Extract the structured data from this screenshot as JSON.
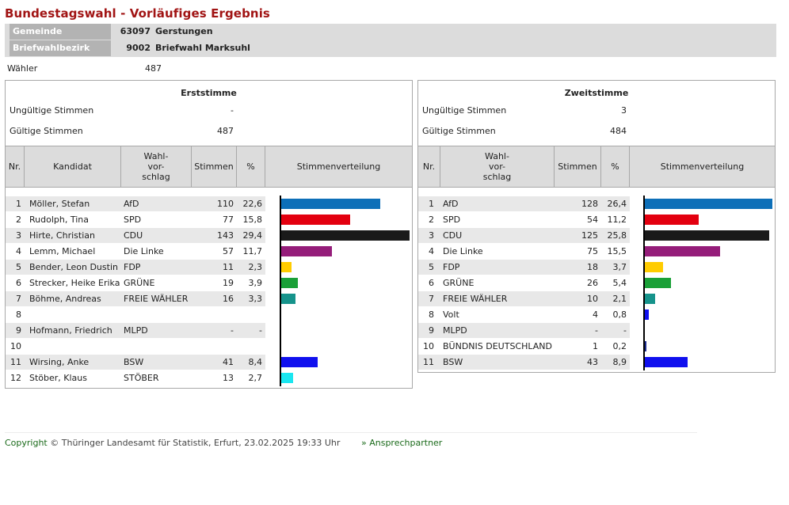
{
  "title": "Bundestagswahl - Vorläufiges Ergebnis",
  "gemeinde": {
    "label": "Gemeinde",
    "number": "63097",
    "name": "Gerstungen"
  },
  "bezirk": {
    "label": "Briefwahlbezirk",
    "number": "9002",
    "name": "Briefwahl Marksuhl"
  },
  "waehler": {
    "label": "Wähler",
    "value": "487"
  },
  "headers": {
    "nr": "Nr.",
    "kandidat": "Kandidat",
    "wahlvorschlag": "Wahl-\nvor-\nschlag",
    "wahlvorschlag2": "Wahl-\nvor-\nschlag",
    "stimmen": "Stimmen",
    "pct": "%",
    "verteilung": "Stimmenverteilung"
  },
  "erst": {
    "title": "Erststimme",
    "ungueltig_label": "Ungültige Stimmen",
    "ungueltig": "-",
    "gueltig_label": "Gültige Stimmen",
    "gueltig": "487",
    "rows": [
      {
        "nr": "1",
        "name": "Möller, Stefan",
        "party": "AfD",
        "votes": "110",
        "pct": "22,6",
        "value": 22.6,
        "color": "#0d6fb8"
      },
      {
        "nr": "2",
        "name": "Rudolph, Tina",
        "party": "SPD",
        "votes": "77",
        "pct": "15,8",
        "value": 15.8,
        "color": "#e3000f"
      },
      {
        "nr": "3",
        "name": "Hirte, Christian",
        "party": "CDU",
        "votes": "143",
        "pct": "29,4",
        "value": 29.4,
        "color": "#1a1a1a"
      },
      {
        "nr": "4",
        "name": "Lemm, Michael",
        "party": "Die Linke",
        "votes": "57",
        "pct": "11,7",
        "value": 11.7,
        "color": "#951d7a"
      },
      {
        "nr": "5",
        "name": "Bender, Leon Dustin",
        "party": "FDP",
        "votes": "11",
        "pct": "2,3",
        "value": 2.3,
        "color": "#ffcc00"
      },
      {
        "nr": "6",
        "name": "Strecker, Heike Erika",
        "party": "GRÜNE",
        "votes": "19",
        "pct": "3,9",
        "value": 3.9,
        "color": "#1aa037"
      },
      {
        "nr": "7",
        "name": "Böhme, Andreas",
        "party": "FREIE WÄHLER",
        "votes": "16",
        "pct": "3,3",
        "value": 3.3,
        "color": "#16938b"
      },
      {
        "nr": "8",
        "name": "",
        "party": "",
        "votes": "",
        "pct": "",
        "value": 0,
        "color": ""
      },
      {
        "nr": "9",
        "name": "Hofmann, Friedrich",
        "party": "MLPD",
        "votes": "-",
        "pct": "-",
        "value": 0,
        "color": ""
      },
      {
        "nr": "10",
        "name": "",
        "party": "",
        "votes": "",
        "pct": "",
        "value": 0,
        "color": ""
      },
      {
        "nr": "11",
        "name": "Wirsing, Anke",
        "party": "BSW",
        "votes": "41",
        "pct": "8,4",
        "value": 8.4,
        "color": "#1010ee"
      },
      {
        "nr": "12",
        "name": "Stöber, Klaus",
        "party": "STÖBER",
        "votes": "13",
        "pct": "2,7",
        "value": 2.7,
        "color": "#1ae6f0"
      }
    ]
  },
  "zweit": {
    "title": "Zweitstimme",
    "ungueltig_label": "Ungültige Stimmen",
    "ungueltig": "3",
    "gueltig_label": "Gültige Stimmen",
    "gueltig": "484",
    "rows": [
      {
        "nr": "1",
        "party": "AfD",
        "votes": "128",
        "pct": "26,4",
        "value": 26.4,
        "color": "#0d6fb8"
      },
      {
        "nr": "2",
        "party": "SPD",
        "votes": "54",
        "pct": "11,2",
        "value": 11.2,
        "color": "#e3000f"
      },
      {
        "nr": "3",
        "party": "CDU",
        "votes": "125",
        "pct": "25,8",
        "value": 25.8,
        "color": "#1a1a1a"
      },
      {
        "nr": "4",
        "party": "Die Linke",
        "votes": "75",
        "pct": "15,5",
        "value": 15.5,
        "color": "#951d7a"
      },
      {
        "nr": "5",
        "party": "FDP",
        "votes": "18",
        "pct": "3,7",
        "value": 3.7,
        "color": "#ffcc00"
      },
      {
        "nr": "6",
        "party": "GRÜNE",
        "votes": "26",
        "pct": "5,4",
        "value": 5.4,
        "color": "#1aa037"
      },
      {
        "nr": "7",
        "party": "FREIE WÄHLER",
        "votes": "10",
        "pct": "2,1",
        "value": 2.1,
        "color": "#16938b"
      },
      {
        "nr": "8",
        "party": "Volt",
        "votes": "4",
        "pct": "0,8",
        "value": 0.8,
        "color": "#1010ee"
      },
      {
        "nr": "9",
        "party": "MLPD",
        "votes": "-",
        "pct": "-",
        "value": 0,
        "color": ""
      },
      {
        "nr": "10",
        "party": "BÜNDNIS DEUTSCHLAND",
        "votes": "1",
        "pct": "0,2",
        "value": 0.2,
        "color": "#1a2a8a"
      },
      {
        "nr": "11",
        "party": "BSW",
        "votes": "43",
        "pct": "8,9",
        "value": 8.9,
        "color": "#1010ee"
      }
    ]
  },
  "footer": {
    "copyright": "Copyright",
    "text": "© Thüringer Landesamt für Statistik, Erfurt, 23.02.2025 19:33 Uhr",
    "contact": "» Ansprechpartner"
  }
}
